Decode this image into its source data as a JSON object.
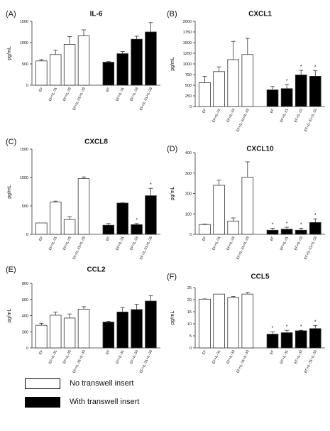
{
  "figure": {
    "legend": [
      {
        "label": "No transwell insert",
        "fill": "#ffffff"
      },
      {
        "label": "With transwell insert",
        "fill": "#000000"
      }
    ],
    "bar_color_without": "#ffffff",
    "bar_color_with": "#000000"
  },
  "chart_data": [
    {
      "type": "bar",
      "panel": "(A)",
      "title": "IL-6",
      "ylabel": "pg/mL",
      "xlabel": "",
      "ylim": [
        0,
        1500
      ],
      "yticks": [
        0,
        500,
        1000,
        1500
      ],
      "categories": [
        "EF",
        "EF+IL-31",
        "EF+IL-33",
        "EF+IL-31+IL-33"
      ],
      "series": [
        {
          "name": "No transwell insert",
          "values": [
            570,
            720,
            960,
            1160
          ],
          "errors": [
            30,
            100,
            180,
            140
          ],
          "significant": [
            false,
            false,
            false,
            false
          ]
        },
        {
          "name": "With transwell insert",
          "values": [
            540,
            740,
            1080,
            1250
          ],
          "errors": [
            15,
            50,
            70,
            220
          ],
          "significant": [
            false,
            false,
            false,
            false
          ]
        }
      ]
    },
    {
      "type": "bar",
      "panel": "(B)",
      "title": "CXCL1",
      "ylabel": "pg/mL",
      "xlabel": "",
      "ylim": [
        0,
        2000
      ],
      "yticks": [
        0,
        250,
        500,
        750,
        1000,
        1250,
        1500,
        1750,
        2000
      ],
      "categories": [
        "EF",
        "EF+IL-31",
        "EF+IL-33",
        "EF+IL-31+IL-33"
      ],
      "series": [
        {
          "name": "No transwell insert",
          "values": [
            560,
            820,
            1100,
            1220
          ],
          "errors": [
            150,
            110,
            430,
            380
          ],
          "significant": [
            false,
            false,
            false,
            false
          ]
        },
        {
          "name": "With transwell insert",
          "values": [
            390,
            420,
            740,
            710
          ],
          "errors": [
            80,
            100,
            110,
            130
          ],
          "significant": [
            false,
            true,
            true,
            true
          ]
        }
      ]
    },
    {
      "type": "bar",
      "panel": "(C)",
      "title": "CXCL8",
      "ylabel": "pg/mL",
      "xlabel": "",
      "ylim": [
        0,
        1500
      ],
      "yticks": [
        0,
        500,
        1000,
        1500
      ],
      "categories": [
        "EF",
        "EF+IL-31",
        "EF+IL-33",
        "EF+IL-31+IL-33"
      ],
      "series": [
        {
          "name": "No transwell insert",
          "values": [
            200,
            570,
            260,
            980
          ],
          "errors": [
            0,
            15,
            50,
            30
          ],
          "significant": [
            false,
            false,
            false,
            false
          ]
        },
        {
          "name": "With transwell insert",
          "values": [
            160,
            550,
            170,
            680
          ],
          "errors": [
            30,
            5,
            20,
            130
          ],
          "significant": [
            false,
            false,
            true,
            true
          ]
        }
      ]
    },
    {
      "type": "bar",
      "panel": "(D)",
      "title": "CXCL10",
      "ylabel": "pg/mL",
      "xlabel": "",
      "ylim": [
        0,
        400
      ],
      "yticks": [
        0,
        100,
        200,
        300,
        400
      ],
      "categories": [
        "EF",
        "EF+IL-31",
        "EF+IL-33",
        "EF+IL-31+IL-33"
      ],
      "series": [
        {
          "name": "No transwell insert",
          "values": [
            48,
            240,
            65,
            280
          ],
          "errors": [
            2,
            25,
            15,
            75
          ],
          "significant": [
            false,
            false,
            false,
            false
          ]
        },
        {
          "name": "With transwell insert",
          "values": [
            20,
            25,
            20,
            58
          ],
          "errors": [
            10,
            10,
            10,
            18
          ],
          "significant": [
            true,
            true,
            true,
            true
          ]
        }
      ]
    },
    {
      "type": "bar",
      "panel": "(E)",
      "title": "CCL2",
      "ylabel": "pg/mL",
      "xlabel": "",
      "ylim": [
        0,
        800
      ],
      "yticks": [
        0,
        200,
        400,
        600,
        800
      ],
      "categories": [
        "EF",
        "EF+IL-31",
        "EF+IL-33",
        "EF+IL-31+IL-33"
      ],
      "series": [
        {
          "name": "No transwell insert",
          "values": [
            280,
            405,
            370,
            480
          ],
          "errors": [
            25,
            40,
            50,
            30
          ],
          "significant": [
            false,
            false,
            false,
            false
          ]
        },
        {
          "name": "With transwell insert",
          "values": [
            320,
            445,
            475,
            580
          ],
          "errors": [
            10,
            55,
            65,
            65
          ],
          "significant": [
            false,
            false,
            false,
            false
          ]
        }
      ]
    },
    {
      "type": "bar",
      "panel": "(F)",
      "title": "CCL5",
      "ylabel": "pg/mL",
      "xlabel": "",
      "ylim": [
        0,
        25
      ],
      "yticks": [
        0,
        5,
        10,
        15,
        20,
        25
      ],
      "categories": [
        "EF",
        "EF+IL-31",
        "EF+IL-33",
        "EF+IL-31+IL-33"
      ],
      "series": [
        {
          "name": "No transwell insert",
          "values": [
            20.2,
            22.3,
            20.9,
            22.3
          ],
          "errors": [
            0.1,
            0,
            0.4,
            0.7
          ],
          "significant": [
            false,
            false,
            false,
            false
          ]
        },
        {
          "name": "With transwell insert",
          "values": [
            5.7,
            6.3,
            7.1,
            8.0
          ],
          "errors": [
            1.0,
            1.0,
            0.2,
            1.3
          ],
          "significant": [
            true,
            true,
            true,
            true
          ]
        }
      ]
    }
  ]
}
